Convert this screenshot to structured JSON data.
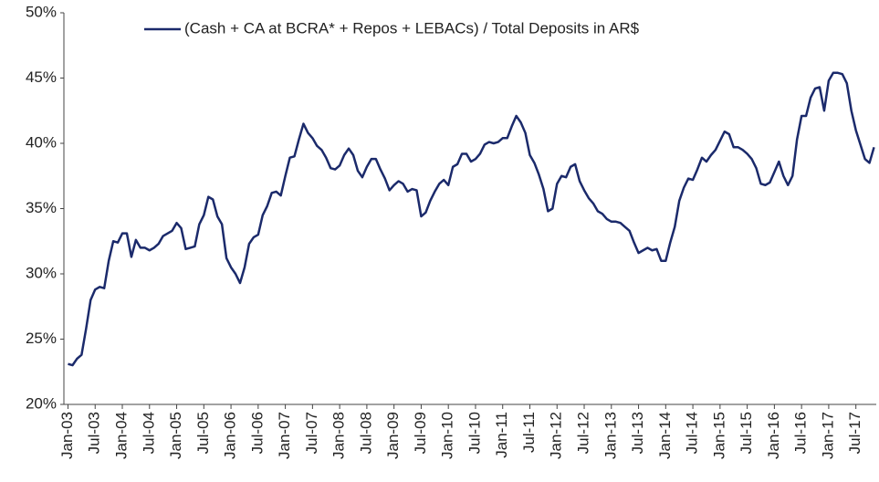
{
  "chart_data": {
    "type": "line",
    "legend": "top",
    "categories": [
      "Jan-03",
      null,
      null,
      null,
      null,
      null,
      "Jul-03",
      null,
      null,
      null,
      null,
      null,
      "Jan-04",
      null,
      null,
      null,
      null,
      null,
      "Jul-04",
      null,
      null,
      null,
      null,
      null,
      "Jan-05",
      null,
      null,
      null,
      null,
      null,
      "Jul-05",
      null,
      null,
      null,
      null,
      null,
      "Jan-06",
      null,
      null,
      null,
      null,
      null,
      "Jul-06",
      null,
      null,
      null,
      null,
      null,
      "Jan-07",
      null,
      null,
      null,
      null,
      null,
      "Jul-07",
      null,
      null,
      null,
      null,
      null,
      "Jan-08",
      null,
      null,
      null,
      null,
      null,
      "Jul-08",
      null,
      null,
      null,
      null,
      null,
      "Jan-09",
      null,
      null,
      null,
      null,
      null,
      "Jul-09",
      null,
      null,
      null,
      null,
      null,
      "Jan-10",
      null,
      null,
      null,
      null,
      null,
      "Jul-10",
      null,
      null,
      null,
      null,
      null,
      "Jan-11",
      null,
      null,
      null,
      null,
      null,
      "Jul-11",
      null,
      null,
      null,
      null,
      null,
      "Jan-12",
      null,
      null,
      null,
      null,
      null,
      "Jul-12",
      null,
      null,
      null,
      null,
      null,
      "Jan-13",
      null,
      null,
      null,
      null,
      null,
      "Jul-13",
      null,
      null,
      null,
      null,
      null,
      "Jan-14",
      null,
      null,
      null,
      null,
      null,
      "Jul-14",
      null,
      null,
      null,
      null,
      null,
      "Jan-15",
      null,
      null,
      null,
      null,
      null,
      "Jul-15",
      null,
      null,
      null,
      null,
      null,
      "Jan-16",
      null,
      null,
      null,
      null,
      null,
      "Jul-16",
      null,
      null,
      null,
      null,
      null,
      "Jan-17",
      null,
      null,
      null,
      null,
      null,
      "Jul-17",
      null,
      null,
      null,
      null
    ],
    "series": [
      {
        "name": "(Cash + CA at BCRA* + Repos + LEBACs) / Total Deposits in AR$",
        "color": "#1b2a6b",
        "values": [
          23.1,
          23.0,
          23.5,
          23.8,
          25.8,
          28.0,
          28.8,
          29.0,
          28.9,
          31.0,
          32.5,
          32.4,
          33.1,
          33.1,
          31.3,
          32.6,
          32.0,
          32.0,
          31.8,
          32.0,
          32.3,
          32.9,
          33.1,
          33.3,
          33.9,
          33.5,
          31.9,
          32.0,
          32.1,
          33.8,
          34.5,
          35.9,
          35.7,
          34.4,
          33.8,
          31.2,
          30.5,
          30.0,
          29.3,
          30.5,
          32.3,
          32.8,
          33.0,
          34.5,
          35.2,
          36.2,
          36.3,
          36.0,
          37.5,
          38.9,
          39.0,
          40.3,
          41.5,
          40.8,
          40.4,
          39.8,
          39.5,
          38.9,
          38.1,
          38.0,
          38.3,
          39.1,
          39.6,
          39.1,
          37.9,
          37.4,
          38.2,
          38.8,
          38.8,
          38.0,
          37.3,
          36.4,
          36.8,
          37.1,
          36.9,
          36.3,
          36.5,
          36.4,
          34.4,
          34.7,
          35.6,
          36.3,
          36.9,
          37.2,
          36.8,
          38.2,
          38.4,
          39.2,
          39.2,
          38.6,
          38.8,
          39.2,
          39.9,
          40.1,
          40.0,
          40.1,
          40.4,
          40.4,
          41.3,
          42.1,
          41.6,
          40.8,
          39.1,
          38.5,
          37.6,
          36.5,
          34.8,
          35.0,
          36.9,
          37.5,
          37.4,
          38.2,
          38.4,
          37.1,
          36.4,
          35.8,
          35.4,
          34.8,
          34.6,
          34.2,
          34.0,
          34.0,
          33.9,
          33.6,
          33.3,
          32.4,
          31.6,
          31.8,
          32.0,
          31.8,
          31.9,
          31.0,
          31.0,
          32.4,
          33.6,
          35.6,
          36.6,
          37.3,
          37.2,
          38.0,
          38.9,
          38.6,
          39.1,
          39.5,
          40.2,
          40.9,
          40.7,
          39.7,
          39.7,
          39.5,
          39.2,
          38.8,
          38.1,
          36.9,
          36.8,
          37.0,
          37.8,
          38.6,
          37.5,
          36.8,
          37.5,
          40.3,
          42.1,
          42.1,
          43.5,
          44.2,
          44.3,
          42.5,
          44.8,
          45.4,
          45.4,
          45.3,
          44.6,
          42.5,
          41.0,
          39.9,
          38.8,
          38.5,
          39.7
        ]
      }
    ],
    "ylim": [
      20,
      50
    ],
    "yticks": [
      {
        "value": 20,
        "label": "20%"
      },
      {
        "value": 25,
        "label": "25%"
      },
      {
        "value": 30,
        "label": "30%"
      },
      {
        "value": 35,
        "label": "35%"
      },
      {
        "value": 40,
        "label": "40%"
      },
      {
        "value": 45,
        "label": "45%"
      },
      {
        "value": 50,
        "label": "50%"
      }
    ]
  }
}
